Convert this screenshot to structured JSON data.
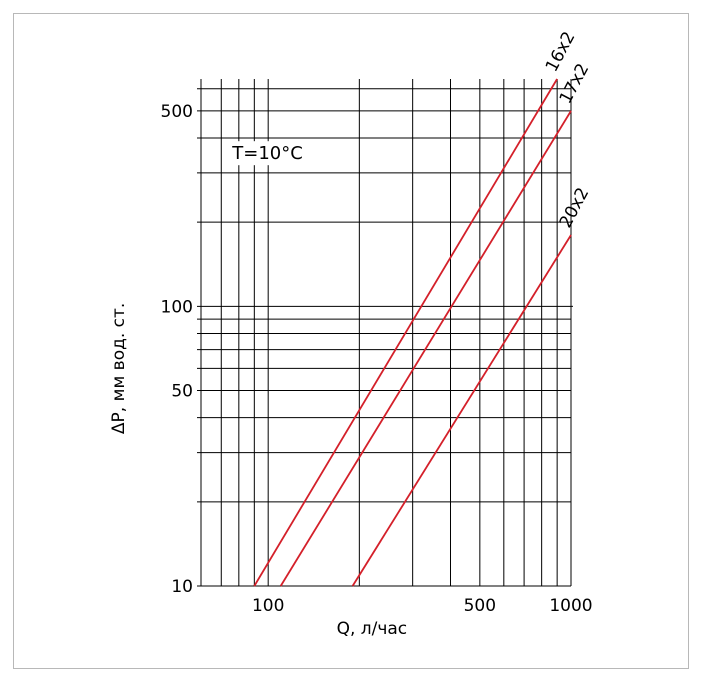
{
  "chart_data": {
    "type": "line",
    "title": "",
    "annotation": "T=10°C",
    "xlabel": "Q, л/час",
    "ylabel": "ΔP, мм вод. ст.",
    "x_scale": "log",
    "y_scale": "log",
    "xlim": [
      60,
      1000
    ],
    "ylim": [
      10,
      650
    ],
    "x_ticks": [
      {
        "value": 100,
        "label": "100"
      },
      {
        "value": 500,
        "label": "500"
      },
      {
        "value": 1000,
        "label": "1000"
      }
    ],
    "y_ticks": [
      {
        "value": 10,
        "label": "10"
      },
      {
        "value": 50,
        "label": "50"
      },
      {
        "value": 100,
        "label": "100"
      },
      {
        "value": 500,
        "label": "500"
      }
    ],
    "grid": true,
    "line_color": "#d4202a",
    "series": [
      {
        "name": "16x2",
        "points": [
          [
            90,
            10
          ],
          [
            900,
            650
          ]
        ]
      },
      {
        "name": "17x2",
        "points": [
          [
            110,
            10
          ],
          [
            1000,
            500
          ]
        ]
      },
      {
        "name": "20x2",
        "points": [
          [
            190,
            10
          ],
          [
            1000,
            180
          ]
        ]
      }
    ]
  }
}
